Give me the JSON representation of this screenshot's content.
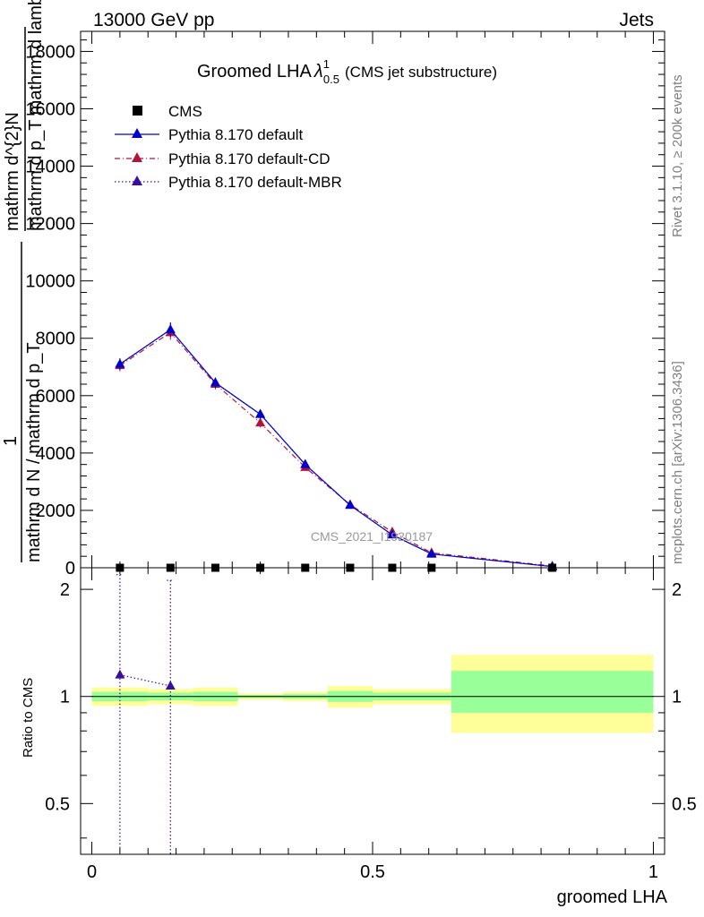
{
  "header": {
    "left": "13000 GeV pp",
    "right": "Jets"
  },
  "side_labels": {
    "rivet": "Rivet 3.1.10, ≥ 200k events",
    "mcplots": "mcplots.cern.ch [arXiv:1306.3436]"
  },
  "legend_entries": [
    {
      "label": "CMS",
      "marker": "square",
      "color": "#000000",
      "line": "none"
    },
    {
      "label": "Pythia 8.170 default",
      "marker": "triangle",
      "color": "#0000cc",
      "line": "solid"
    },
    {
      "label": "Pythia 8.170 default-CD",
      "marker": "triangle",
      "color": "#b0143c",
      "line": "dashdot"
    },
    {
      "label": "Pythia 8.170 default-MBR",
      "marker": "triangle",
      "color": "#3a0fa0",
      "line": "dotted"
    }
  ],
  "chart_data": [
    {
      "type": "line",
      "title": "Groomed LHA",
      "title_symbol": "λ",
      "title_sup": "1",
      "title_sub": "0.5",
      "title_note": "(CMS jet substructure)",
      "ylabel_lines": [
        "mathrm d^{2}N",
        "mathrm d p_T mathrm d lambda",
        "1",
        "mathrm d N / mathrm d p_T"
      ],
      "watermark": "CMS_2021_I1920187",
      "xlim": [
        -0.02,
        1.02
      ],
      "ylim": [
        0,
        18700
      ],
      "y_ticks": [
        0,
        2000,
        4000,
        6000,
        8000,
        10000,
        12000,
        14000,
        16000,
        18000
      ],
      "y_tick_labels": [
        "0",
        "2000",
        "4000",
        "6000",
        "8000",
        "10000",
        "12000",
        "14000",
        "16000",
        "18000"
      ],
      "cms": {
        "x": [
          0.05,
          0.14,
          0.22,
          0.3,
          0.38,
          0.46,
          0.535,
          0.605,
          0.82
        ],
        "y": [
          0,
          0,
          0,
          0,
          0,
          0,
          0,
          0,
          0
        ]
      },
      "series": [
        {
          "name": "Pythia 8.170 default",
          "x": [
            0.05,
            0.14,
            0.22,
            0.3,
            0.38,
            0.46,
            0.535,
            0.605,
            0.82
          ],
          "y": [
            7100,
            8300,
            6450,
            5350,
            3600,
            2180,
            1150,
            480,
            40
          ],
          "err": [
            200,
            250,
            180,
            160,
            120,
            80,
            60,
            40,
            10
          ]
        },
        {
          "name": "Pythia 8.170 default-CD",
          "x": [
            0.05,
            0.14,
            0.22,
            0.3,
            0.38,
            0.46,
            0.535,
            0.605,
            0.82
          ],
          "y": [
            7050,
            8200,
            6400,
            5050,
            3500,
            2200,
            1250,
            520,
            60
          ],
          "err": [
            200,
            250,
            180,
            160,
            120,
            80,
            60,
            40,
            10
          ]
        },
        {
          "name": "Pythia 8.170 default-MBR",
          "x": [
            0.05,
            0.14,
            0.22,
            0.3,
            0.38,
            0.46,
            0.535,
            0.605,
            0.82
          ],
          "y": [
            7100,
            8300,
            6450,
            5350,
            3600,
            2180,
            1150,
            480,
            40
          ],
          "err": [
            200,
            250,
            180,
            160,
            120,
            80,
            60,
            40,
            10
          ]
        }
      ]
    },
    {
      "type": "line",
      "ylabel": "Ratio to CMS",
      "xlabel": "groomed LHA",
      "xlim": [
        -0.02,
        1.02
      ],
      "ylim": [
        0.36,
        2.3
      ],
      "y_ticks": [
        0.5,
        1,
        2
      ],
      "y_tick_labels": [
        "0.5",
        "1",
        "2"
      ],
      "x_ticks": [
        0,
        0.5,
        1
      ],
      "x_tick_labels": [
        "0",
        "0.5",
        "1"
      ],
      "bins": [
        0,
        0.1,
        0.18,
        0.26,
        0.34,
        0.42,
        0.5,
        0.64,
        1.0
      ],
      "band_yellow": [
        [
          0.94,
          1.06
        ],
        [
          0.95,
          1.05
        ],
        [
          0.94,
          1.06
        ],
        [
          0.98,
          1.02
        ],
        [
          0.97,
          1.03
        ],
        [
          0.93,
          1.07
        ],
        [
          0.95,
          1.05
        ],
        [
          0.79,
          1.31
        ]
      ],
      "band_green": [
        [
          0.97,
          1.03
        ],
        [
          0.975,
          1.025
        ],
        [
          0.97,
          1.03
        ],
        [
          0.99,
          1.01
        ],
        [
          0.985,
          1.015
        ],
        [
          0.965,
          1.035
        ],
        [
          0.975,
          1.025
        ],
        [
          0.9,
          1.18
        ]
      ],
      "ratio_points": {
        "name": "Pythia 8.170 default-MBR",
        "x": [
          0.05,
          0.14
        ],
        "y": [
          1.15,
          1.07
        ],
        "err_hi": [
          2.2,
          2.12
        ]
      }
    }
  ]
}
